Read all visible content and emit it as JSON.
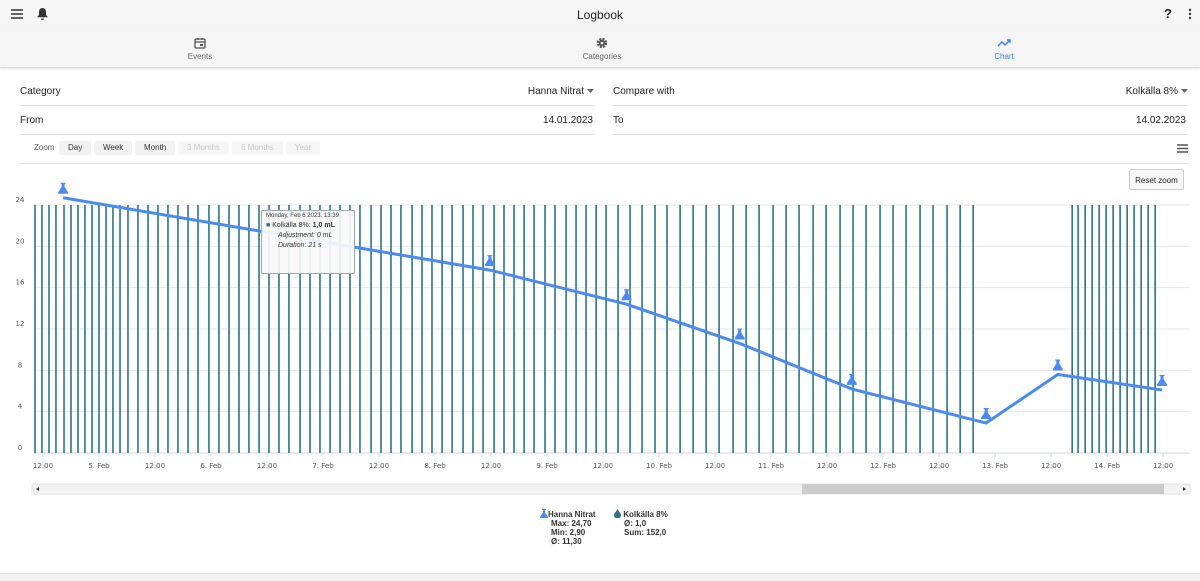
{
  "app_bar": {
    "title": "Logbook",
    "help": "?"
  },
  "tabs": [
    {
      "label": "Events"
    },
    {
      "label": "Categories"
    },
    {
      "label": "Chart",
      "active": true
    }
  ],
  "form": {
    "category_label": "Category",
    "category_value": "Hanna Nitrat",
    "compare_label": "Compare with",
    "compare_value": "Kolkälla 8%",
    "from_label": "From",
    "from_value": "14.01.2023",
    "to_label": "To",
    "to_value": "14.02.2023"
  },
  "zoom": {
    "label": "Zoom",
    "buttons": [
      {
        "label": "Day",
        "disabled": false
      },
      {
        "label": "Week",
        "disabled": false
      },
      {
        "label": "Month",
        "disabled": false
      },
      {
        "label": "3 Months",
        "disabled": true
      },
      {
        "label": "6 Months",
        "disabled": true
      },
      {
        "label": "Year",
        "disabled": true
      }
    ]
  },
  "reset_zoom": "Reset zoom",
  "chart_data": {
    "type": "line",
    "xlim": [
      4.42,
      14.74
    ],
    "xticks": [
      {
        "value": 4.5,
        "label": "12:00"
      },
      {
        "value": 5,
        "label": "5. Feb"
      },
      {
        "value": 5.5,
        "label": "12:00"
      },
      {
        "value": 6,
        "label": "6. Feb"
      },
      {
        "value": 6.5,
        "label": "12:00"
      },
      {
        "value": 7,
        "label": "7. Feb"
      },
      {
        "value": 7.5,
        "label": "12:00"
      },
      {
        "value": 8,
        "label": "8. Feb"
      },
      {
        "value": 8.5,
        "label": "12:00"
      },
      {
        "value": 9,
        "label": "9. Feb"
      },
      {
        "value": 9.5,
        "label": "12:00"
      },
      {
        "value": 10,
        "label": "10. Feb"
      },
      {
        "value": 10.5,
        "label": "12:00"
      },
      {
        "value": 11,
        "label": "11. Feb"
      },
      {
        "value": 11.5,
        "label": "12:00"
      },
      {
        "value": 12,
        "label": "12. Feb"
      },
      {
        "value": 12.5,
        "label": "12:00"
      },
      {
        "value": 13,
        "label": "13. Feb"
      },
      {
        "value": 13.5,
        "label": "12:00"
      },
      {
        "value": 14,
        "label": "14. Feb"
      },
      {
        "value": 14.5,
        "label": "12:00"
      }
    ],
    "ylim": [
      0,
      24
    ],
    "yticks": [
      0,
      4,
      8,
      12,
      16,
      20,
      24
    ],
    "y2lim": [
      0,
      1
    ],
    "grid": true,
    "series": [
      {
        "name": "Hanna Nitrat",
        "type": "line",
        "color": "#4a8af4",
        "x": [
          4.68,
          8.49,
          9.71,
          10.72,
          11.72,
          12.92,
          13.56,
          14.49
        ],
        "values": [
          24.7,
          17.7,
          14.4,
          10.6,
          6.2,
          2.9,
          7.6,
          6.1
        ],
        "stats": [
          "Max: 24,70",
          "Min: 2,90",
          "Ø: 11,30"
        ]
      },
      {
        "name": "Kolkälla 8%",
        "type": "column",
        "axis": "y2",
        "color": "#2b7586",
        "x": [
          4.429,
          4.491,
          4.554,
          4.616,
          4.688,
          4.75,
          4.813,
          4.875,
          4.938,
          5.0,
          5.063,
          5.125,
          5.188,
          5.259,
          5.348,
          5.438,
          5.527,
          5.616,
          5.705,
          5.795,
          5.884,
          5.982,
          6.071,
          6.161,
          6.25,
          6.339,
          6.429,
          6.518,
          6.607,
          6.696,
          6.795,
          6.884,
          6.973,
          7.063,
          7.152,
          7.241,
          7.33,
          7.429,
          7.518,
          7.607,
          7.696,
          7.795,
          7.884,
          7.973,
          8.063,
          8.152,
          8.25,
          8.339,
          8.429,
          8.527,
          8.616,
          8.705,
          8.795,
          8.884,
          8.982,
          9.071,
          9.17,
          9.259,
          9.348,
          9.438,
          9.527,
          9.634,
          9.741,
          9.848,
          9.964,
          10.071,
          10.188,
          10.304,
          10.42,
          10.536,
          10.661,
          10.777,
          10.893,
          11.018,
          11.134,
          11.25,
          11.375,
          11.491,
          11.616,
          11.732,
          11.848,
          11.973,
          12.089,
          12.205,
          12.33,
          12.446,
          12.571,
          12.688,
          12.804,
          13.688,
          13.741,
          13.804,
          13.866,
          13.929,
          13.991,
          14.054,
          14.116,
          14.179,
          14.241,
          14.304,
          14.366,
          14.429
        ],
        "values": [
          1,
          1,
          1,
          1,
          1,
          1,
          1,
          1,
          1,
          1,
          1,
          1,
          1,
          1,
          1,
          1,
          1,
          1,
          1,
          1,
          1,
          1,
          1,
          1,
          1,
          1,
          1,
          1,
          1,
          1,
          1,
          1,
          1,
          1,
          1,
          1,
          1,
          1,
          1,
          1,
          1,
          1,
          1,
          1,
          1,
          1,
          1,
          1,
          1,
          1,
          1,
          1,
          1,
          1,
          1,
          1,
          1,
          1,
          1,
          1,
          1,
          1,
          1,
          1,
          1,
          1,
          1,
          1,
          1,
          1,
          1,
          1,
          1,
          1,
          1,
          1,
          1,
          1,
          1,
          1,
          1,
          1,
          1,
          1,
          1,
          1,
          1,
          1,
          1,
          1,
          1,
          1,
          1,
          1,
          1,
          1,
          1,
          1,
          1,
          1,
          1,
          1
        ],
        "stats": [
          "Ø: 1,0",
          "Sum: 152,0"
        ]
      }
    ],
    "tooltip": {
      "date": "Monday, Feb 6 2023, 13:39",
      "series_label": "Kolkälla 8%:",
      "value": "1,0 mL",
      "adjustment": "Adjustment: 0 mL",
      "duration": "Duration: 21 s"
    }
  }
}
